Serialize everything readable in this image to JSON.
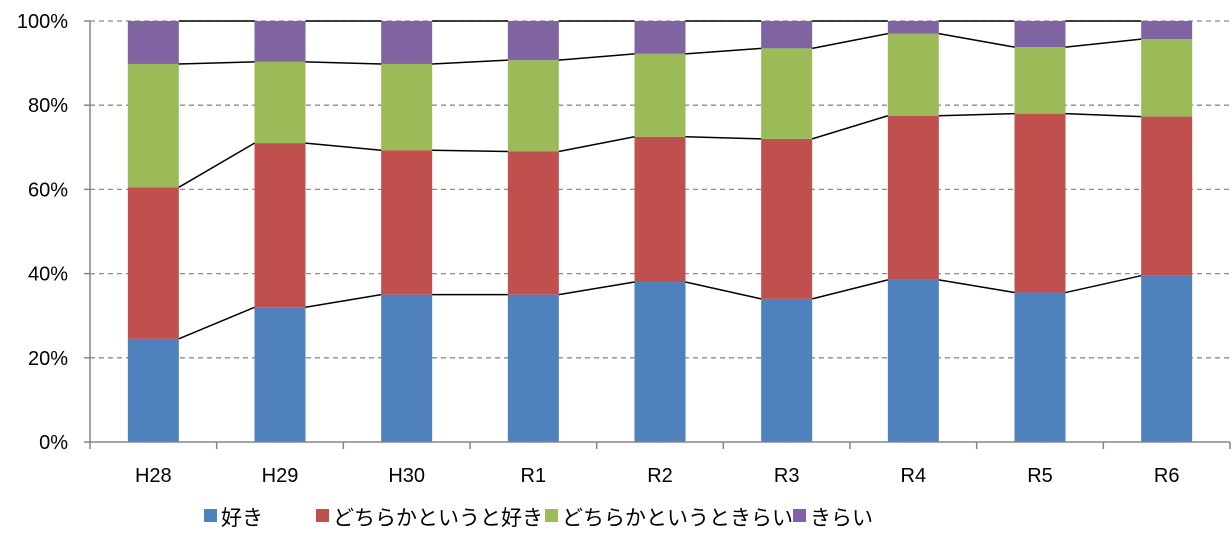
{
  "chart_data": {
    "type": "bar",
    "stacked": true,
    "percent": true,
    "categories": [
      "H28",
      "H29",
      "H30",
      "R1",
      "R2",
      "R3",
      "R4",
      "R5",
      "R6"
    ],
    "series": [
      {
        "name": "好き",
        "color": "#4f81bd",
        "values": [
          24.5,
          32.0,
          35.0,
          35.0,
          38.0,
          34.0,
          38.5,
          35.5,
          39.5
        ]
      },
      {
        "name": "どちらかというと好き",
        "color": "#c0504d",
        "values": [
          36.0,
          39.0,
          34.3,
          34.0,
          34.5,
          38.0,
          39.0,
          42.5,
          37.8
        ]
      },
      {
        "name": "どちらかというときらい",
        "color": "#9bbb59",
        "values": [
          29.3,
          19.3,
          20.5,
          21.7,
          19.7,
          21.5,
          19.5,
          15.8,
          18.4
        ]
      },
      {
        "name": "きらい",
        "color": "#8064a2",
        "values": [
          10.2,
          9.7,
          10.2,
          9.3,
          7.8,
          6.5,
          3.0,
          6.2,
          4.3
        ]
      }
    ],
    "ylim": [
      0,
      100
    ],
    "y_ticks": [
      "0%",
      "20%",
      "40%",
      "60%",
      "80%",
      "100%"
    ],
    "grid": true,
    "legend_position": "bottom",
    "series_lines": true,
    "title": "",
    "xlabel": "",
    "ylabel": ""
  }
}
